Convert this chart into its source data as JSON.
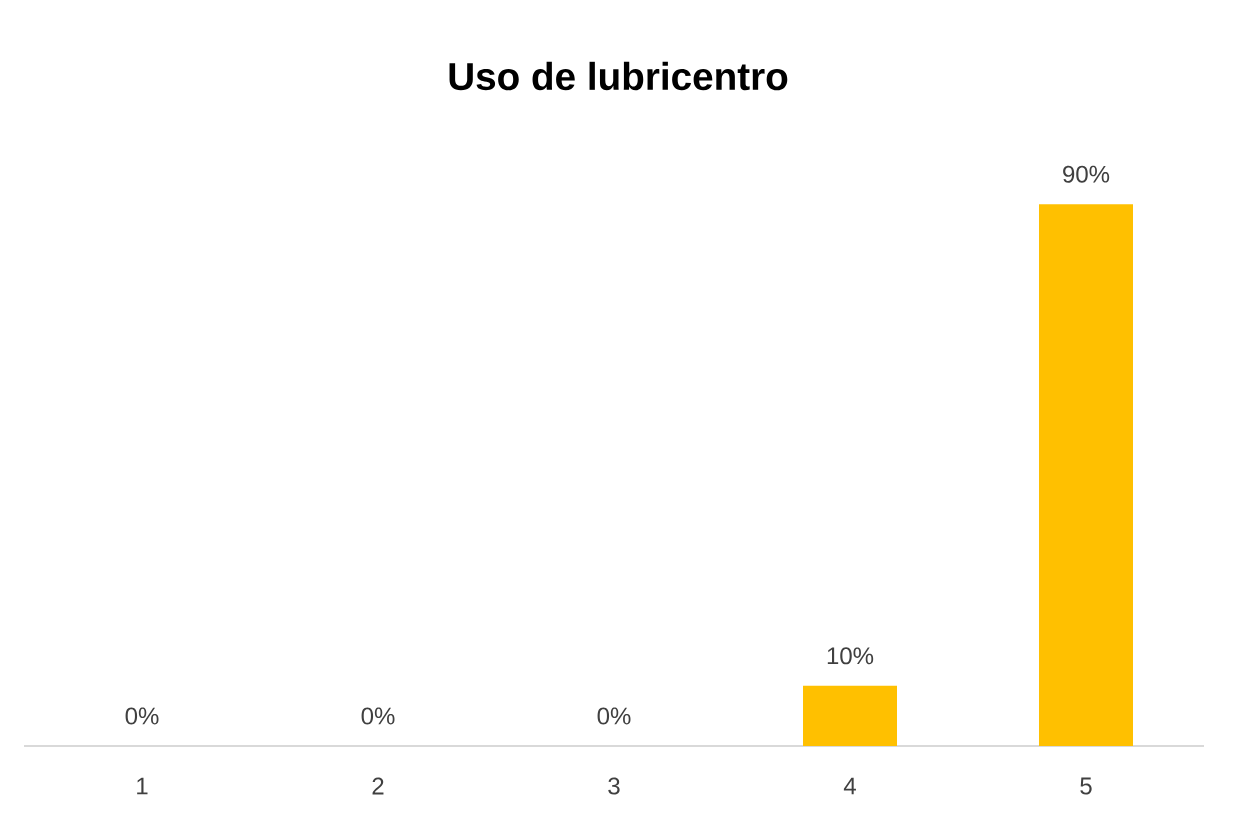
{
  "chart_data": {
    "type": "bar",
    "title": "Uso de lubricentro",
    "categories": [
      "1",
      "2",
      "3",
      "4",
      "5"
    ],
    "values": [
      0,
      0,
      0,
      10,
      90
    ],
    "color": "#ffc000",
    "value_labels": [
      "0%",
      "0%",
      "0%",
      "10%",
      "90%"
    ],
    "tick_labels": "x"
  }
}
